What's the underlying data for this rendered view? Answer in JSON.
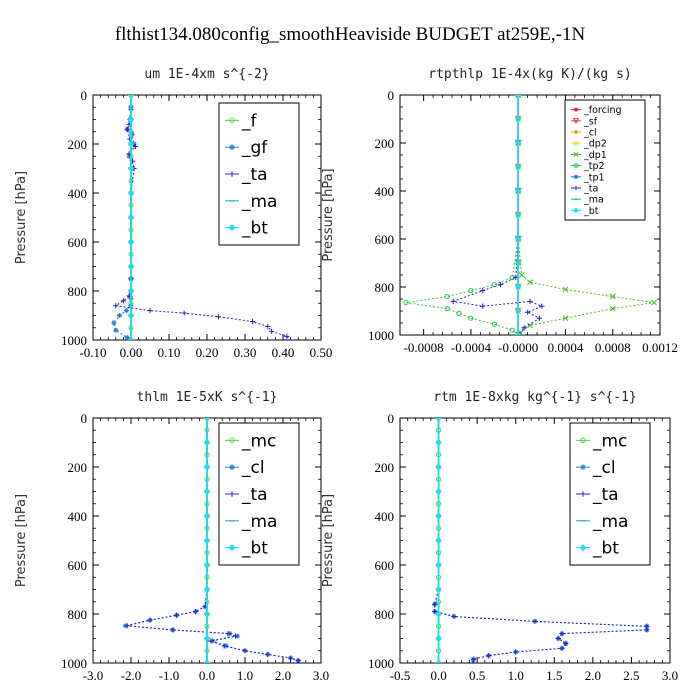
{
  "page": {
    "title": "flthist134.080config_smoothHeaviside  BUDGET at259E,-1N"
  },
  "chart_data": [
    {
      "type": "line",
      "title": "um  1E-4xm s^{-2}",
      "ylabel": "Pressure [hPa]",
      "xlim": [
        -0.1,
        0.5
      ],
      "ylim": [
        1000,
        0
      ],
      "xticks": [
        "-0.10",
        "0.00",
        "0.10",
        "0.20",
        "0.30",
        "0.40",
        "0.50"
      ],
      "xtick_values": [
        -0.1,
        0,
        0.1,
        0.2,
        0.3,
        0.4,
        0.5
      ],
      "yticks": [
        "0",
        "200",
        "400",
        "600",
        "800",
        "1000"
      ],
      "ytick_values": [
        0,
        200,
        400,
        600,
        800,
        1000
      ],
      "legend_style": "large",
      "series": [
        {
          "name": "_f",
          "color": "#44dd44",
          "marker": "o",
          "x": [
            0,
            0,
            0,
            0,
            0,
            0,
            0,
            0,
            0,
            0,
            0,
            0,
            0,
            0,
            0,
            0,
            0,
            0,
            0,
            0,
            0
          ],
          "y": [
            0,
            50,
            100,
            150,
            200,
            250,
            300,
            350,
            400,
            450,
            500,
            550,
            600,
            650,
            700,
            750,
            800,
            850,
            900,
            950,
            1000
          ]
        },
        {
          "name": "_gf",
          "color": "#2b7bd6",
          "marker": "*",
          "x": [
            0,
            0,
            -0.003,
            -0.01,
            0.003,
            0.008,
            -0.005,
            0.002,
            0,
            0,
            0,
            0,
            0,
            0,
            0,
            -0.001,
            -0.012,
            -0.03,
            -0.045,
            -0.04,
            -0.01,
            0
          ],
          "y": [
            0,
            50,
            100,
            140,
            160,
            200,
            250,
            300,
            400,
            500,
            600,
            700,
            750,
            800,
            830,
            860,
            880,
            900,
            930,
            960,
            990,
            1000
          ]
        },
        {
          "name": "_ta",
          "color": "#2222cc",
          "marker": "+",
          "x": [
            0,
            0,
            -0.005,
            -0.01,
            -0.003,
            0.012,
            -0.005,
            0.004,
            0.008,
            0,
            0,
            0,
            0,
            0,
            0,
            -0.005,
            -0.02,
            -0.04,
            0.05,
            0.14,
            0.23,
            0.32,
            0.36,
            0.37,
            0.41,
            0.42
          ],
          "y": [
            0,
            60,
            120,
            140,
            180,
            210,
            240,
            270,
            300,
            400,
            500,
            600,
            700,
            750,
            800,
            820,
            840,
            860,
            880,
            890,
            905,
            925,
            945,
            965,
            985,
            1000
          ]
        },
        {
          "name": "_ma",
          "color": "#22aacc",
          "marker": "-",
          "x": [
            0,
            0,
            0,
            0,
            0,
            0,
            0,
            0,
            0,
            0,
            0
          ],
          "y": [
            0,
            100,
            200,
            300,
            400,
            500,
            600,
            700,
            800,
            900,
            1000
          ]
        },
        {
          "name": "_bt",
          "color": "#22ddee",
          "marker": "D",
          "x": [
            0,
            0,
            0,
            0,
            0,
            0,
            0,
            0,
            0,
            0,
            0
          ],
          "y": [
            0,
            100,
            200,
            300,
            400,
            500,
            600,
            700,
            800,
            900,
            1000
          ]
        }
      ]
    },
    {
      "type": "line",
      "title": "rtpthlp  1E-4x(kg K)/(kg s)",
      "ylabel": "Pressure [hPa]",
      "xlim": [
        -0.001,
        0.0012
      ],
      "ylim": [
        1000,
        0
      ],
      "xticks": [
        "-0.0008",
        "-0.0004",
        "-0.0000",
        "0.0004",
        "0.0008",
        "0.0012"
      ],
      "xtick_values": [
        -0.0008,
        -0.0004,
        0,
        0.0004,
        0.0008,
        0.0012
      ],
      "yticks": [
        "0",
        "200",
        "400",
        "600",
        "800",
        "1000"
      ],
      "ytick_values": [
        0,
        200,
        400,
        600,
        800,
        1000
      ],
      "legend_style": "small",
      "series": [
        {
          "name": "_forcing",
          "color": "#dd2222",
          "marker": "*",
          "x": [
            0,
            0,
            0,
            0,
            0,
            0,
            0,
            0,
            0,
            0,
            0
          ],
          "y": [
            0,
            100,
            200,
            300,
            400,
            500,
            600,
            700,
            800,
            900,
            1000
          ]
        },
        {
          "name": "_sf",
          "color": "#ee3333",
          "marker": "v",
          "x": [
            0,
            0,
            0,
            0,
            0,
            0,
            0,
            0,
            0,
            0,
            0
          ],
          "y": [
            0,
            100,
            200,
            300,
            400,
            500,
            600,
            700,
            800,
            900,
            1000
          ]
        },
        {
          "name": "_cl",
          "color": "#ee9922",
          "marker": "*",
          "x": [
            0,
            0,
            0,
            0,
            0,
            0,
            0,
            0,
            0,
            0,
            0
          ],
          "y": [
            0,
            100,
            200,
            300,
            400,
            500,
            600,
            700,
            800,
            900,
            1000
          ]
        },
        {
          "name": "_dp2",
          "color": "#dddd22",
          "marker": "x",
          "x": [
            0,
            0,
            0,
            0,
            0,
            0,
            0,
            0,
            0,
            0,
            0
          ],
          "y": [
            0,
            100,
            200,
            300,
            400,
            500,
            600,
            700,
            800,
            900,
            1000
          ]
        },
        {
          "name": "_dp1",
          "color": "#44bb22",
          "marker": "x",
          "x": [
            0,
            0,
            0,
            0,
            3e-05,
            0.0001,
            0.0004,
            0.0008,
            0.00115,
            0.0008,
            0.0004,
            0.0001,
            2e-05,
            0
          ],
          "y": [
            0,
            200,
            400,
            600,
            750,
            780,
            810,
            840,
            865,
            890,
            930,
            960,
            990,
            1000
          ]
        },
        {
          "name": "_tp2",
          "color": "#22cc44",
          "marker": "o",
          "x": [
            0,
            0,
            0,
            0,
            -5e-05,
            -0.0002,
            -0.0004,
            -0.0006,
            -0.00095,
            -0.0006,
            -0.0005,
            -0.0004,
            -0.0002,
            -5e-05,
            0
          ],
          "y": [
            0,
            200,
            400,
            600,
            760,
            790,
            815,
            840,
            865,
            890,
            910,
            930,
            955,
            980,
            1000
          ]
        },
        {
          "name": "_tp1",
          "color": "#2277dd",
          "marker": "*",
          "x": [
            0,
            0,
            0,
            0,
            0,
            0,
            0,
            0,
            0,
            0,
            0
          ],
          "y": [
            0,
            100,
            200,
            300,
            400,
            500,
            600,
            700,
            800,
            900,
            1000
          ]
        },
        {
          "name": "_ta",
          "color": "#2222cc",
          "marker": "+",
          "x": [
            0,
            0,
            0,
            -2e-05,
            -0.00015,
            -0.0003,
            -0.00055,
            -0.0003,
            0.0001,
            0.0002,
            8e-05,
            0.00018,
            5e-05,
            0
          ],
          "y": [
            0,
            300,
            600,
            760,
            790,
            815,
            860,
            880,
            860,
            880,
            905,
            930,
            970,
            1000
          ]
        },
        {
          "name": "_ma",
          "color": "#22aacc",
          "marker": "-",
          "x": [
            0,
            0,
            0,
            0,
            0,
            0,
            0,
            0,
            0,
            0,
            0
          ],
          "y": [
            0,
            100,
            200,
            300,
            400,
            500,
            600,
            700,
            800,
            900,
            1000
          ]
        },
        {
          "name": "_bt",
          "color": "#22ddee",
          "marker": "D",
          "x": [
            0,
            0,
            0,
            0,
            0,
            0,
            0,
            0,
            0,
            0,
            0
          ],
          "y": [
            0,
            100,
            200,
            300,
            400,
            500,
            600,
            700,
            800,
            900,
            1000
          ]
        }
      ]
    },
    {
      "type": "line",
      "title": "thlm  1E-5xK s^{-1}",
      "ylabel": "Pressure [hPa]",
      "xlim": [
        -3.0,
        3.0
      ],
      "ylim": [
        1000,
        0
      ],
      "xticks": [
        "-3.0",
        "-2.0",
        "-1.0",
        "0.0",
        "1.0",
        "2.0",
        "3.0"
      ],
      "xtick_values": [
        -3,
        -2,
        -1,
        0,
        1,
        2,
        3
      ],
      "yticks": [
        "0",
        "200",
        "400",
        "600",
        "800",
        "1000"
      ],
      "ytick_values": [
        0,
        200,
        400,
        600,
        800,
        1000
      ],
      "legend_style": "large",
      "series": [
        {
          "name": "_mc",
          "color": "#44dd44",
          "marker": "o",
          "x": [
            0,
            0,
            0,
            0,
            0,
            0,
            0,
            0,
            0,
            0,
            0,
            0,
            0,
            0,
            0,
            0,
            0,
            0,
            0,
            0,
            0
          ],
          "y": [
            0,
            50,
            100,
            150,
            200,
            250,
            300,
            350,
            400,
            450,
            500,
            550,
            600,
            650,
            700,
            750,
            800,
            850,
            900,
            950,
            1000
          ]
        },
        {
          "name": "_cl",
          "color": "#2b7bd6",
          "marker": "*",
          "x": [
            0,
            0,
            0,
            0,
            0,
            -0.05,
            -0.3,
            -0.8,
            -1.5,
            -2.15,
            -0.9,
            0.6,
            0.8,
            0.15,
            0.5,
            1.0,
            1.6,
            2.2,
            2.4,
            2.4
          ],
          "y": [
            0,
            200,
            400,
            600,
            700,
            770,
            790,
            805,
            825,
            848,
            865,
            880,
            890,
            910,
            930,
            950,
            965,
            980,
            990,
            1000
          ]
        },
        {
          "name": "_ta",
          "color": "#2222cc",
          "marker": "+",
          "x": [
            0,
            0,
            0,
            0,
            0,
            -0.05,
            -0.3,
            -0.8,
            -1.5,
            -2.1,
            -0.9,
            0.55,
            0.75,
            0.1,
            0.45,
            1.0,
            1.6,
            2.2,
            2.4,
            2.4
          ],
          "y": [
            0,
            200,
            400,
            600,
            700,
            770,
            790,
            805,
            825,
            848,
            865,
            880,
            890,
            910,
            930,
            950,
            965,
            980,
            990,
            1000
          ]
        },
        {
          "name": "_ma",
          "color": "#22aacc",
          "marker": "-",
          "x": [
            0,
            0,
            0,
            0,
            0,
            0,
            0,
            0,
            0,
            0,
            0
          ],
          "y": [
            0,
            100,
            200,
            300,
            400,
            500,
            600,
            700,
            800,
            900,
            1000
          ]
        },
        {
          "name": "_bt",
          "color": "#22ddee",
          "marker": "D",
          "x": [
            0,
            0,
            0,
            0,
            0,
            0,
            0,
            0,
            0,
            0,
            0
          ],
          "y": [
            0,
            100,
            200,
            300,
            400,
            500,
            600,
            700,
            800,
            900,
            1000
          ]
        }
      ]
    },
    {
      "type": "line",
      "title": "rtm  1E-8xkg kg^{-1} s^{-1}",
      "ylabel": "Pressure [hPa]",
      "xlim": [
        -0.5,
        3.0
      ],
      "ylim": [
        1000,
        0
      ],
      "xticks": [
        "-0.5",
        "0.0",
        "0.5",
        "1.0",
        "1.5",
        "2.0",
        "2.5",
        "3.0"
      ],
      "xtick_values": [
        -0.5,
        0,
        0.5,
        1,
        1.5,
        2,
        2.5,
        3
      ],
      "yticks": [
        "0",
        "200",
        "400",
        "600",
        "800",
        "1000"
      ],
      "ytick_values": [
        0,
        200,
        400,
        600,
        800,
        1000
      ],
      "legend_style": "large",
      "series": [
        {
          "name": "_mc",
          "color": "#44dd44",
          "marker": "o",
          "x": [
            0,
            0,
            0,
            0,
            0,
            0,
            0,
            0,
            0,
            0,
            0,
            0,
            0,
            0,
            0,
            0,
            0,
            0,
            0,
            0,
            0
          ],
          "y": [
            0,
            50,
            100,
            150,
            200,
            250,
            300,
            350,
            400,
            450,
            500,
            550,
            600,
            650,
            700,
            750,
            800,
            850,
            900,
            950,
            1000
          ]
        },
        {
          "name": "_cl",
          "color": "#2b7bd6",
          "marker": "*",
          "x": [
            0,
            0,
            0,
            0,
            0,
            -0.05,
            -0.05,
            0.2,
            1.25,
            2.7,
            2.7,
            1.6,
            1.55,
            1.65,
            1.6,
            1.0,
            0.65,
            0.45,
            0.45
          ],
          "y": [
            0,
            200,
            400,
            600,
            700,
            760,
            790,
            810,
            830,
            850,
            865,
            880,
            900,
            920,
            940,
            955,
            970,
            985,
            1000
          ]
        },
        {
          "name": "_ta",
          "color": "#2222cc",
          "marker": "+",
          "x": [
            0,
            0,
            0,
            0,
            0,
            -0.05,
            -0.05,
            0.2,
            1.25,
            2.7,
            2.7,
            1.6,
            1.55,
            1.65,
            1.6,
            1.0,
            0.65,
            0.45,
            0.45
          ],
          "y": [
            0,
            200,
            400,
            600,
            700,
            760,
            790,
            810,
            830,
            850,
            865,
            880,
            900,
            920,
            940,
            955,
            970,
            985,
            1000
          ]
        },
        {
          "name": "_ma",
          "color": "#22aacc",
          "marker": "-",
          "x": [
            0,
            0,
            0,
            0,
            0,
            0,
            0,
            0,
            0,
            0,
            0
          ],
          "y": [
            0,
            100,
            200,
            300,
            400,
            500,
            600,
            700,
            800,
            900,
            1000
          ]
        },
        {
          "name": "_bt",
          "color": "#22ddee",
          "marker": "D",
          "x": [
            0,
            0,
            0,
            0,
            0,
            0,
            0,
            0,
            0,
            0,
            0
          ],
          "y": [
            0,
            100,
            200,
            300,
            400,
            500,
            600,
            700,
            800,
            900,
            1000
          ]
        }
      ]
    }
  ]
}
